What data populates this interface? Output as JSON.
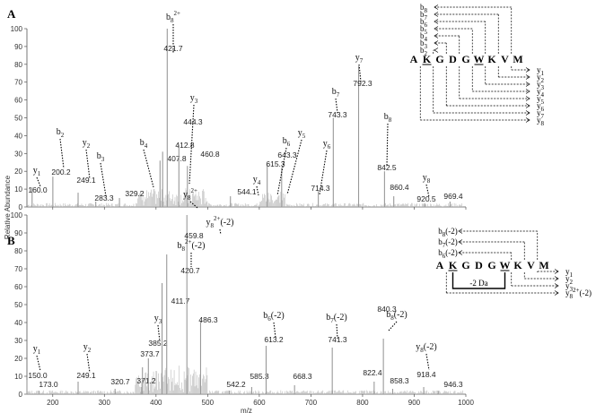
{
  "chart_data": [
    {
      "panel": "A",
      "type": "bar",
      "xlabel": "",
      "ylabel": "Relative Abundance",
      "xlim": [
        150,
        1000
      ],
      "ylim": [
        0,
        100
      ],
      "xticks": [
        200,
        300,
        400,
        500,
        600,
        700,
        800,
        900,
        1000
      ],
      "yticks": [
        0,
        10,
        20,
        30,
        40,
        50,
        60,
        70,
        80,
        90,
        100
      ],
      "peaks": [
        {
          "x": 160.0,
          "y": 11,
          "label": "160.0"
        },
        {
          "x": 200.2,
          "y": 17,
          "label": "200.2"
        },
        {
          "x": 249.1,
          "y": 8,
          "label": "249.1"
        },
        {
          "x": 283.3,
          "y": 3,
          "label": "283.3"
        },
        {
          "x": 329.2,
          "y": 5,
          "label": "329.2"
        },
        {
          "x": 407.8,
          "y": 26,
          "label": "407.8"
        },
        {
          "x": 412.8,
          "y": 31,
          "label": "412.8"
        },
        {
          "x": 421.7,
          "y": 100,
          "label": "421.7"
        },
        {
          "x": 444.3,
          "y": 35,
          "label": "444.3"
        },
        {
          "x": 460.8,
          "y": 23,
          "label": "460.8"
        },
        {
          "x": 544.1,
          "y": 6,
          "label": "544.1"
        },
        {
          "x": 615.3,
          "y": 24,
          "label": "615.3"
        },
        {
          "x": 643.3,
          "y": 22,
          "label": "643.3"
        },
        {
          "x": 714.3,
          "y": 9,
          "label": "714.3"
        },
        {
          "x": 743.3,
          "y": 50,
          "label": "743.3"
        },
        {
          "x": 792.3,
          "y": 79,
          "label": "792.3"
        },
        {
          "x": 842.5,
          "y": 20,
          "label": "842.5"
        },
        {
          "x": 860.4,
          "y": 6,
          "label": "860.4"
        },
        {
          "x": 920.5,
          "y": 2,
          "label": "920.5"
        },
        {
          "x": 969.4,
          "y": 3,
          "label": "969.4"
        }
      ],
      "ion_labels": [
        {
          "x": 160.0,
          "base": "y",
          "sub": "1",
          "sup": "",
          "suffix": ""
        },
        {
          "x": 200.2,
          "base": "b",
          "sub": "2",
          "sup": "",
          "suffix": ""
        },
        {
          "x": 249.1,
          "base": "y",
          "sub": "2",
          "sup": "",
          "suffix": ""
        },
        {
          "x": 283.3,
          "base": "b",
          "sub": "3",
          "sup": "",
          "suffix": ""
        },
        {
          "x": 407.8,
          "base": "b",
          "sub": "4",
          "sup": "",
          "suffix": ""
        },
        {
          "x": 412.8,
          "base": "y",
          "sub": "3",
          "sup": "",
          "suffix": ""
        },
        {
          "x": 421.7,
          "base": "b",
          "sub": "8",
          "sup": "2+",
          "suffix": ""
        },
        {
          "x": 460.8,
          "base": "y",
          "sub": "8",
          "sup": "2+",
          "suffix": ""
        },
        {
          "x": 544.1,
          "base": "y",
          "sub": "4",
          "sup": "",
          "suffix": ""
        },
        {
          "x": 615.3,
          "base": "b",
          "sub": "6",
          "sup": "",
          "suffix": ""
        },
        {
          "x": 643.3,
          "base": "y",
          "sub": "5",
          "sup": "",
          "suffix": ""
        },
        {
          "x": 714.3,
          "base": "y",
          "sub": "6",
          "sup": "",
          "suffix": ""
        },
        {
          "x": 743.3,
          "base": "b",
          "sub": "7",
          "sup": "",
          "suffix": ""
        },
        {
          "x": 792.3,
          "base": "y",
          "sub": "7",
          "sup": "",
          "suffix": ""
        },
        {
          "x": 842.5,
          "base": "b",
          "sub": "8",
          "sup": "",
          "suffix": ""
        },
        {
          "x": 920.5,
          "base": "y",
          "sub": "8",
          "sup": "",
          "suffix": ""
        }
      ]
    },
    {
      "panel": "B",
      "type": "bar",
      "xlabel": "m/z",
      "ylabel": "",
      "xlim": [
        150,
        1000
      ],
      "ylim": [
        0,
        100
      ],
      "xticks": [
        200,
        300,
        400,
        500,
        600,
        700,
        800,
        900,
        1000
      ],
      "yticks": [
        0,
        10,
        20,
        30,
        40,
        50,
        60,
        70,
        80,
        90,
        100
      ],
      "peaks": [
        {
          "x": 150.0,
          "y": 8,
          "label": "150.0"
        },
        {
          "x": 173.0,
          "y": 2,
          "label": "173.0"
        },
        {
          "x": 249.1,
          "y": 7,
          "label": "249.1"
        },
        {
          "x": 320.7,
          "y": 3,
          "label": "320.7"
        },
        {
          "x": 371.2,
          "y": 4,
          "label": "371.2"
        },
        {
          "x": 373.7,
          "y": 15,
          "label": "373.7"
        },
        {
          "x": 385.2,
          "y": 20,
          "label": "385.2"
        },
        {
          "x": 411.7,
          "y": 62,
          "label": "411.7"
        },
        {
          "x": 420.7,
          "y": 78,
          "label": "420.7"
        },
        {
          "x": 459.8,
          "y": 100,
          "label": "459.8"
        },
        {
          "x": 486.3,
          "y": 41,
          "label": "486.3"
        },
        {
          "x": 542.2,
          "y": 2,
          "label": "542.2"
        },
        {
          "x": 585.3,
          "y": 4,
          "label": "585.3"
        },
        {
          "x": 613.2,
          "y": 27,
          "label": "613.2"
        },
        {
          "x": 668.3,
          "y": 5,
          "label": "668.3"
        },
        {
          "x": 741.3,
          "y": 26,
          "label": "741.3"
        },
        {
          "x": 822.4,
          "y": 7,
          "label": "822.4"
        },
        {
          "x": 840.3,
          "y": 31,
          "label": "840.3"
        },
        {
          "x": 858.3,
          "y": 3,
          "label": "858.3"
        },
        {
          "x": 918.4,
          "y": 4,
          "label": "918.4"
        },
        {
          "x": 946.3,
          "y": 2,
          "label": "946.3"
        }
      ],
      "ion_labels": [
        {
          "x": 150.0,
          "base": "y",
          "sub": "1",
          "sup": "",
          "suffix": ""
        },
        {
          "x": 249.1,
          "base": "y",
          "sub": "2",
          "sup": "",
          "suffix": ""
        },
        {
          "x": 385.2,
          "base": "y",
          "sub": "3",
          "sup": "",
          "suffix": ""
        },
        {
          "x": 420.7,
          "base": "b",
          "sub": "8",
          "sup": "2+",
          "suffix": "(-2)"
        },
        {
          "x": 459.8,
          "base": "y",
          "sub": "8",
          "sup": "2+",
          "suffix": "(-2)"
        },
        {
          "x": 613.2,
          "base": "b",
          "sub": "6",
          "sup": "",
          "suffix": "(-2)"
        },
        {
          "x": 741.3,
          "base": "b",
          "sub": "7",
          "sup": "",
          "suffix": "(-2)"
        },
        {
          "x": 840.3,
          "base": "b",
          "sub": "8",
          "sup": "",
          "suffix": "(-2)"
        },
        {
          "x": 918.4,
          "base": "y",
          "sub": "8",
          "sup": "",
          "suffix": "(-2)"
        }
      ]
    }
  ],
  "fragment_maps": {
    "A": {
      "sequence": [
        "A",
        "K",
        "G",
        "D",
        "G",
        "W",
        "K",
        "V",
        "M"
      ],
      "b_ions": [
        "b8",
        "b7",
        "b6",
        "b5",
        "b4",
        "b3",
        "b2"
      ],
      "y_ions": [
        "y1",
        "y2",
        "y3",
        "y4",
        "y5",
        "y6",
        "y7",
        "y8"
      ]
    },
    "B": {
      "sequence": [
        "A",
        "K",
        "G",
        "D",
        "G",
        "W",
        "K",
        "V",
        "M"
      ],
      "b_ions": [
        "b8(-2)",
        "b7(-2)",
        "b6(-2)"
      ],
      "y_ions": [
        "y1",
        "y2",
        "y3",
        "y82+(-2)"
      ],
      "crosslink_label": "-2 Da"
    }
  }
}
